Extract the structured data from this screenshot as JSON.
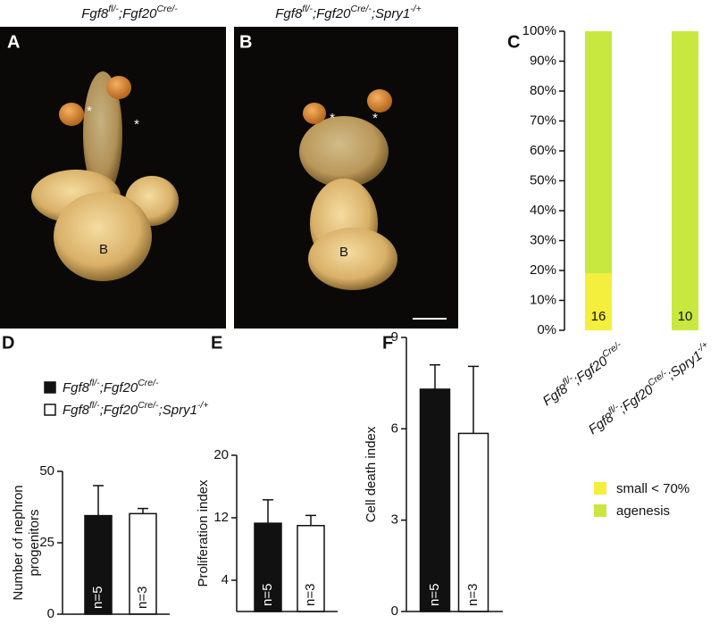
{
  "panels": {
    "A": {
      "letter": "A",
      "title_parts": [
        "Fgf8",
        "fl/-",
        ";Fgf20",
        "Cre/-"
      ],
      "stars": [
        "*",
        "*"
      ],
      "organ": "B"
    },
    "B": {
      "letter": "B",
      "title_parts": [
        "Fgf8",
        "fl/-",
        ";Fgf20",
        "Cre/-",
        ";Spry1",
        "-/+"
      ],
      "stars": [
        "*",
        "*"
      ],
      "organ": "B"
    }
  },
  "chart_data": [
    {
      "type": "stacked-bar",
      "letter": "C",
      "categories": [
        [
          "Fgf8",
          "fl/-",
          ";Fgf20",
          "Cre/-"
        ],
        [
          "Fgf8",
          "fl/-",
          ";Fgf20",
          "Cre/-",
          ";Spry1",
          "-/+"
        ]
      ],
      "series": [
        {
          "name": "small < 70%",
          "color": "#f4ee3c",
          "values": [
            19,
            0
          ]
        },
        {
          "name": "agenesis",
          "color": "#c9e83f",
          "values": [
            81,
            100
          ]
        }
      ],
      "annotations": [
        "16",
        "10"
      ],
      "ylim": [
        0,
        100
      ],
      "yticks": [
        {
          "value": 0,
          "label": "0%"
        },
        {
          "value": 10,
          "label": "10%"
        },
        {
          "value": 20,
          "label": "20%"
        },
        {
          "value": 30,
          "label": "30%"
        },
        {
          "value": 40,
          "label": "40%"
        },
        {
          "value": 50,
          "label": "50%"
        },
        {
          "value": 60,
          "label": "60%"
        },
        {
          "value": 70,
          "label": "70%"
        },
        {
          "value": 80,
          "label": "80%"
        },
        {
          "value": 90,
          "label": "90%"
        },
        {
          "value": 100,
          "label": "100%"
        }
      ]
    },
    {
      "type": "bar",
      "letter": "D",
      "ylabel": [
        "Number of nephron",
        "progenitors"
      ],
      "categories": [
        [
          "Fgf8",
          "fl/-",
          ";Fgf20",
          "Cre/-"
        ],
        [
          "Fgf8",
          "fl/-",
          ";Fgf20",
          "Cre/-",
          ";Spry1",
          "-/+"
        ]
      ],
      "colors": [
        "#111111",
        "#ffffff"
      ],
      "values": [
        34.5,
        35.2
      ],
      "errors": [
        10.5,
        1.8
      ],
      "bar_labels": [
        "n=5",
        "n=3"
      ],
      "ylim": [
        0,
        50
      ],
      "yticks": [
        0,
        25,
        50
      ]
    },
    {
      "type": "bar",
      "letter": "E",
      "ylabel": [
        "Proliferation index"
      ],
      "categories": [
        null,
        null
      ],
      "colors": [
        "#111111",
        "#ffffff"
      ],
      "values": [
        11.3,
        11.0
      ],
      "errors": [
        3.0,
        1.3
      ],
      "bar_labels": [
        "n=5",
        "n=3"
      ],
      "ylim": [
        0,
        20
      ],
      "yticks": [
        4,
        12,
        20
      ]
    },
    {
      "type": "bar",
      "letter": "F",
      "ylabel": [
        "Cell death index"
      ],
      "categories": [
        null,
        null
      ],
      "colors": [
        "#111111",
        "#ffffff"
      ],
      "values": [
        7.3,
        5.85
      ],
      "errors": [
        0.8,
        2.2
      ],
      "bar_labels": [
        "n=5",
        "n=3"
      ],
      "ylim": [
        0,
        9
      ],
      "yticks": [
        0,
        3,
        6,
        9
      ]
    }
  ]
}
